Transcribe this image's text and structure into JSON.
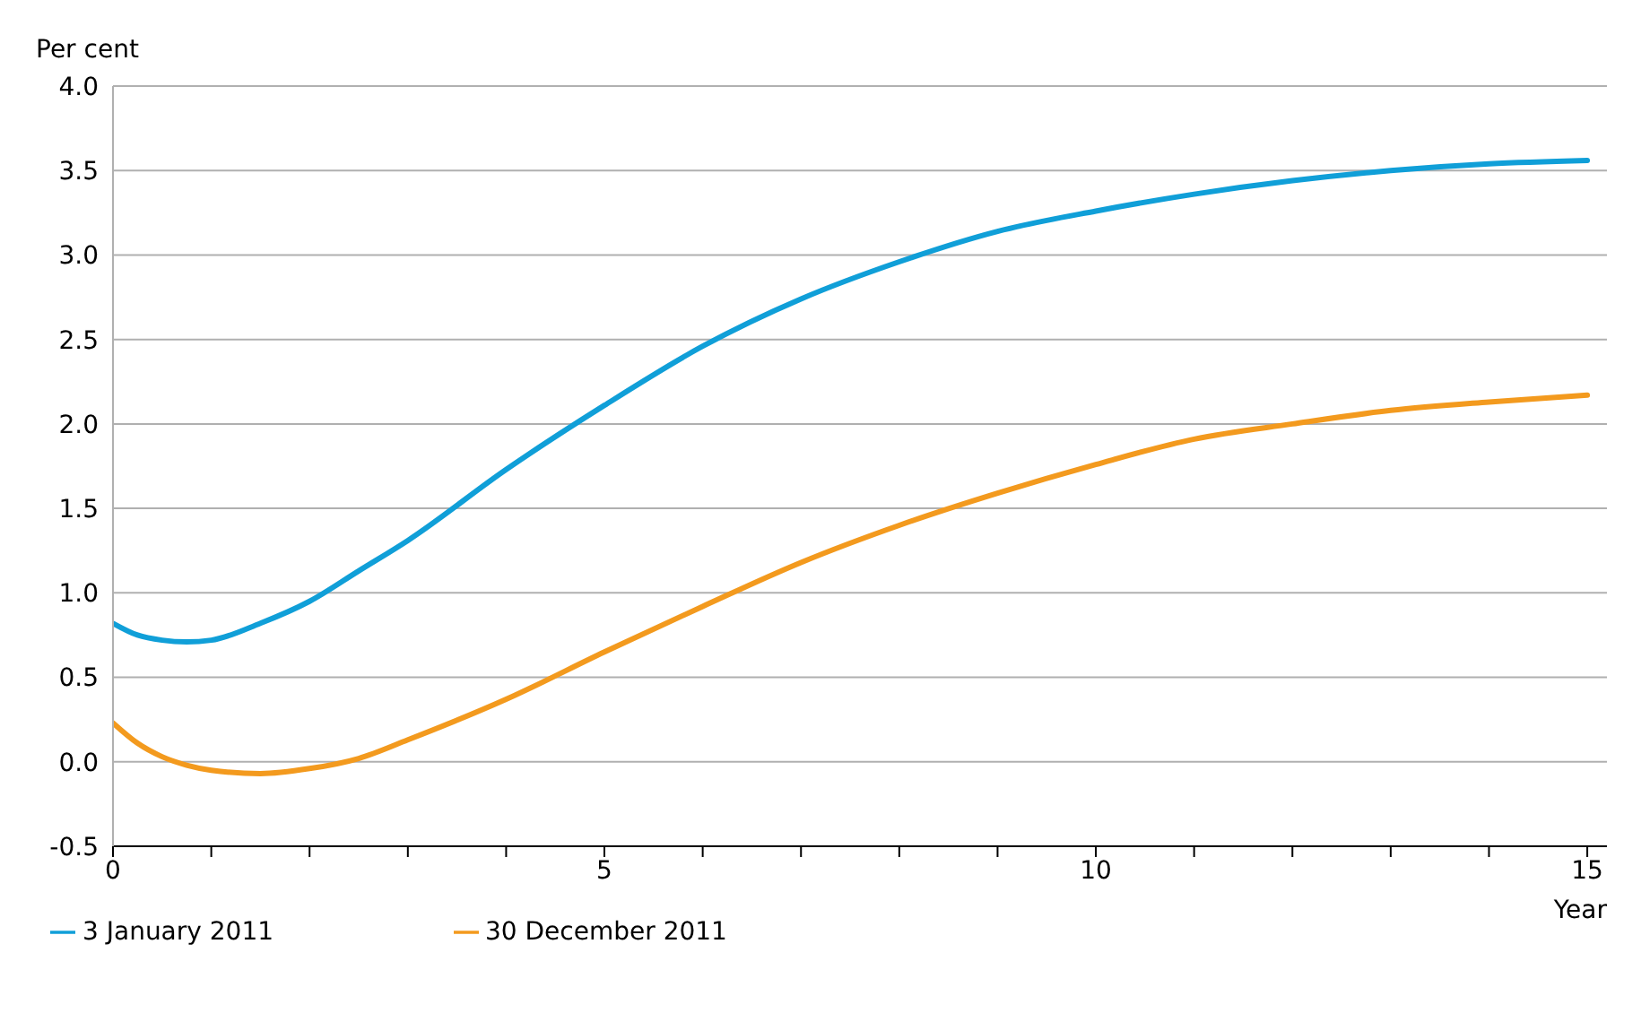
{
  "chart_data": {
    "type": "line",
    "ylabel": "Per cent",
    "xlabel": "Year",
    "x": [
      0,
      0.25,
      0.5,
      0.75,
      1,
      1.5,
      2,
      2.5,
      3,
      4,
      5,
      6,
      7,
      8,
      9,
      10,
      11,
      12,
      13,
      14,
      15
    ],
    "series": [
      {
        "name": "3 January 2011",
        "color": "#109fd8",
        "values": [
          0.82,
          0.75,
          0.72,
          0.71,
          0.72,
          0.82,
          0.95,
          1.13,
          1.31,
          1.73,
          2.11,
          2.46,
          2.74,
          2.96,
          3.14,
          3.26,
          3.36,
          3.44,
          3.5,
          3.54,
          3.56
        ]
      },
      {
        "name": "30 December 2011",
        "color": "#f39a1e",
        "values": [
          0.23,
          0.11,
          0.03,
          -0.02,
          -0.05,
          -0.07,
          -0.04,
          0.02,
          0.13,
          0.37,
          0.65,
          0.92,
          1.18,
          1.4,
          1.59,
          1.76,
          1.91,
          2.0,
          2.08,
          2.13,
          2.17
        ]
      }
    ],
    "xlim": [
      0,
      15.2
    ],
    "xticks": [
      0,
      {
        "value": 1,
        "label": null
      },
      {
        "value": 2,
        "label": null
      },
      {
        "value": 3,
        "label": null
      },
      {
        "value": 4,
        "label": null
      },
      5,
      {
        "value": 6,
        "label": null
      },
      {
        "value": 7,
        "label": null
      },
      {
        "value": 8,
        "label": null
      },
      {
        "value": 9,
        "label": null
      },
      10,
      {
        "value": 11,
        "label": null
      },
      {
        "value": 12,
        "label": null
      },
      {
        "value": 13,
        "label": null
      },
      {
        "value": 14,
        "label": null
      },
      15
    ],
    "ylim": [
      -0.5,
      4
    ],
    "yticks": [
      {
        "value": -0.5,
        "label": "-0.5"
      },
      {
        "value": 0,
        "label": "0.0"
      },
      {
        "value": 0.5,
        "label": "0.5"
      },
      {
        "value": 1,
        "label": "1.0"
      },
      {
        "value": 1.5,
        "label": "1.5"
      },
      {
        "value": 2,
        "label": "2.0"
      },
      {
        "value": 2.5,
        "label": "2.5"
      },
      {
        "value": 3,
        "label": "3.0"
      },
      {
        "value": 3.5,
        "label": "3.5"
      },
      {
        "value": 4,
        "label": "4.0"
      }
    ],
    "grid": "y",
    "legend": "bottom left",
    "marker": "none",
    "line_style": "solid"
  }
}
